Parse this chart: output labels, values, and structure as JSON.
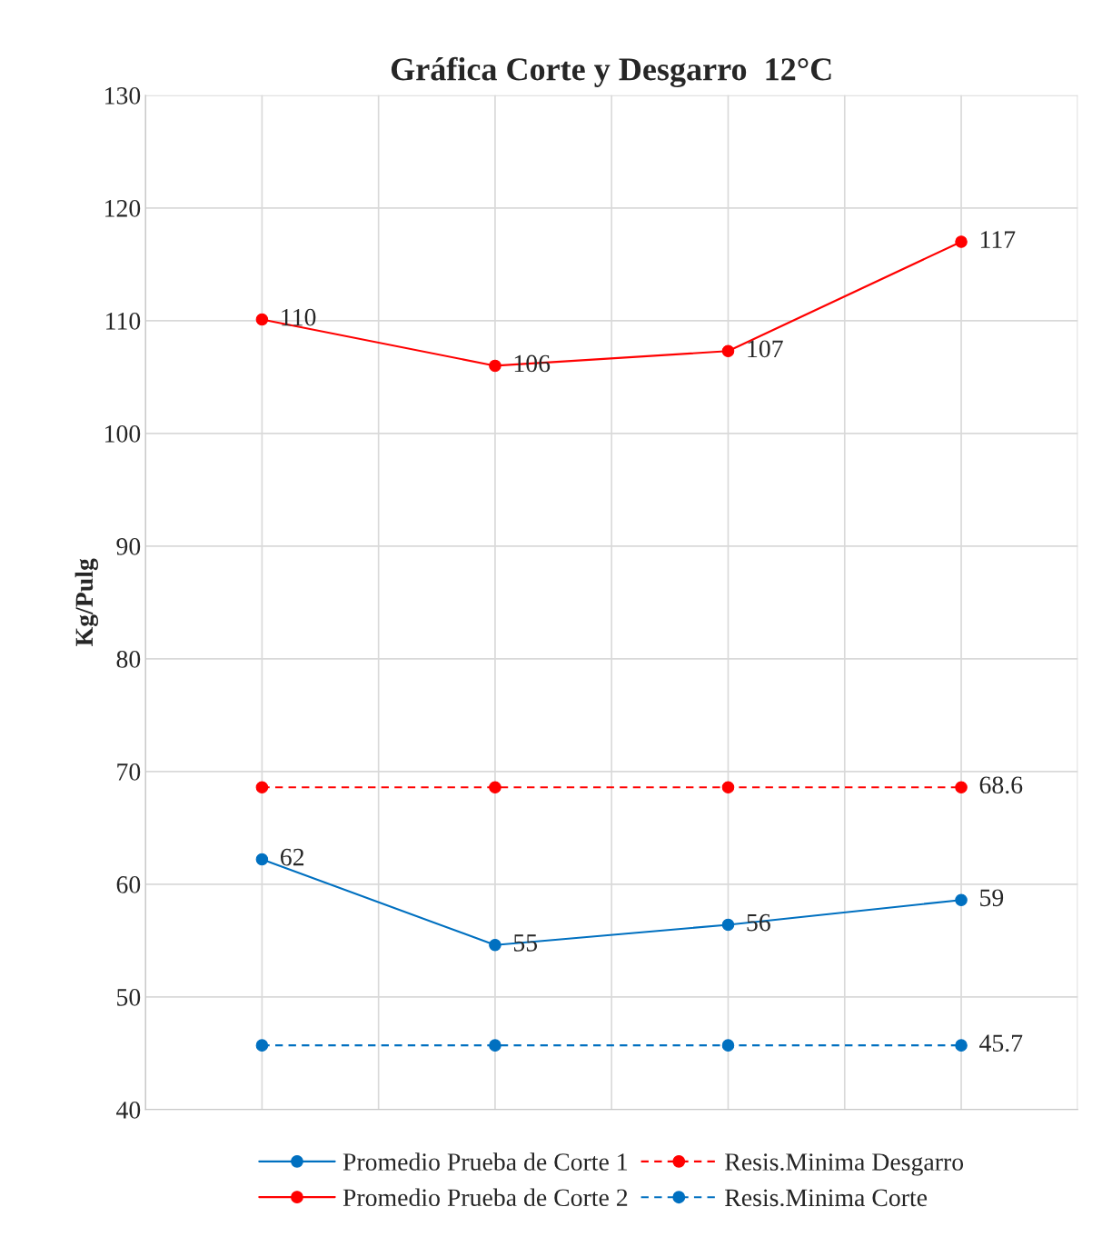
{
  "chart_data": {
    "type": "line",
    "title": "Gráfica Corte y Desgarro  12°C",
    "ylabel": "Kg/Pulg",
    "categories": [
      null,
      null,
      null,
      null
    ],
    "series": [
      {
        "name": "Promedio Prueba de Corte 1",
        "color": "#0070c0",
        "values": [
          62.2,
          54.6,
          56.4,
          58.6
        ],
        "value_labels": [
          "62",
          "55",
          "56",
          "59"
        ],
        "line_style": "solid"
      },
      {
        "name": "Promedio Prueba de Corte 2",
        "color": "#ff0000",
        "values": [
          110.1,
          106,
          107.3,
          117
        ],
        "value_labels": [
          "110",
          "106",
          "107",
          "117"
        ],
        "line_style": "solid"
      },
      {
        "name": "Resis.Minima Desgarro",
        "color": "#ff0000",
        "values": [
          68.6,
          68.6,
          68.6,
          68.6
        ],
        "value_labels": [
          null,
          null,
          null,
          "68.6"
        ],
        "line_style": "dashed"
      },
      {
        "name": "Resis.Minima Corte",
        "color": "#0070c0",
        "values": [
          45.7,
          45.7,
          45.7,
          45.7
        ],
        "value_labels": [
          null,
          null,
          null,
          "45.7"
        ],
        "line_style": "dashed"
      }
    ],
    "ylim": [
      40,
      130
    ],
    "yticks": [
      40,
      50,
      60,
      70,
      80,
      90,
      100,
      110,
      120,
      130
    ],
    "grid": true,
    "legend": "bottom",
    "marker": "circle"
  }
}
